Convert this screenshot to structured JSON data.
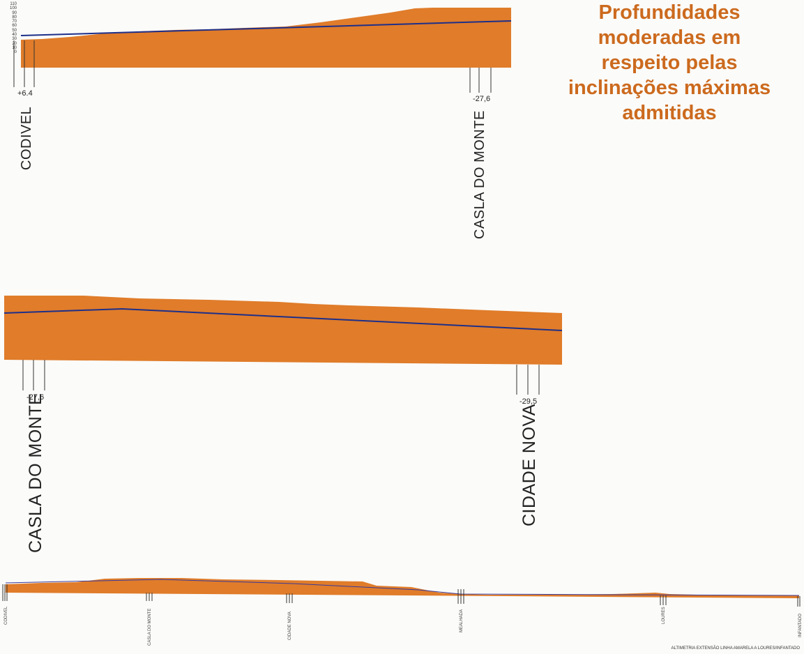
{
  "title": {
    "lines": [
      "Profundidades",
      "moderadas em",
      "respeito pelas",
      "inclinações máximas",
      "admitidas"
    ],
    "color": "#cc6a1e"
  },
  "colors": {
    "terrain": "#e07c2a",
    "line": "#1d2f8a",
    "background": "#fbfbf9"
  },
  "profile1": {
    "scale_labels": [
      "110",
      "100",
      "90",
      "80",
      "70",
      "60",
      "50",
      "40",
      "30",
      "20",
      "10",
      "0"
    ],
    "depth_start": "+6.4",
    "depth_end": "-27,6",
    "station_start": "CODIVEL",
    "station_end": "CASLA DO MONTE"
  },
  "profile2": {
    "depth_start": "-27,6",
    "depth_end": "-29,5",
    "station_start": "CASLA DO MONTE",
    "station_end": "CIDADE NOVA"
  },
  "profile3": {
    "stations": [
      "CODIVEL",
      "CASLA DO MONTE",
      "CIDADE NOVA",
      "MEALHADA",
      "LOURES",
      "INFANTADO"
    ],
    "caption": "ALTIMETRIA   EXTENSÃO LINHA AMARELA A LOURES/INFANTADO"
  }
}
